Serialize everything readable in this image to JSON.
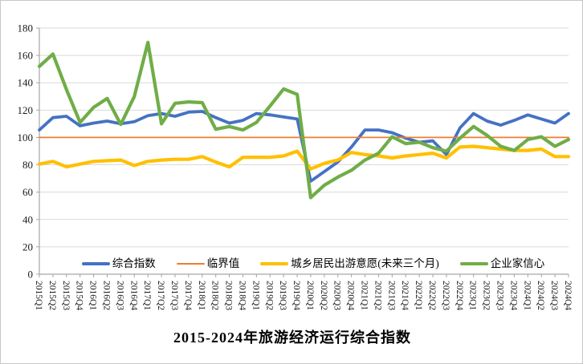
{
  "chart_data": {
    "type": "line",
    "title": "2015-2024年旅游经济运行综合指数",
    "categories": [
      "2015Q1",
      "2015Q2",
      "2015Q3",
      "2015Q4",
      "2016Q1",
      "2016Q2",
      "2016Q3",
      "2016Q4",
      "2017Q1",
      "2017Q2",
      "2017Q3",
      "2017Q4",
      "2018Q1",
      "2018Q2",
      "2018Q3",
      "2018Q4",
      "2019Q1",
      "2019Q2",
      "2019Q3",
      "2019Q4",
      "2020Q1",
      "2020Q2",
      "2020Q3",
      "2020Q4",
      "2021Q1",
      "2021Q2",
      "2021Q3",
      "2021Q4",
      "2022Q1",
      "2022Q2",
      "2022Q3",
      "2022Q4",
      "2023Q1",
      "2023Q2",
      "2023Q3",
      "2023Q4",
      "2024Q1",
      "2024Q2",
      "2024Q3",
      "2024Q4"
    ],
    "series": [
      {
        "name": "综合指数",
        "color": "#4472C4",
        "values": [
          105.5,
          114.5,
          115.5,
          108.5,
          110.5,
          112,
          110,
          111.5,
          116,
          117.5,
          115.5,
          118.5,
          119,
          114.5,
          110.5,
          112.5,
          117.5,
          116.5,
          115,
          113.5,
          68,
          75,
          82,
          93,
          105.5,
          105.5,
          103.5,
          99.5,
          96.5,
          97.5,
          87.5,
          107,
          117.5,
          112,
          109,
          112.5,
          116.5,
          113.5,
          110.5,
          117.5
        ]
      },
      {
        "name": "临界值",
        "color": "#ED7D31",
        "values": [
          100,
          100,
          100,
          100,
          100,
          100,
          100,
          100,
          100,
          100,
          100,
          100,
          100,
          100,
          100,
          100,
          100,
          100,
          100,
          100,
          100,
          100,
          100,
          100,
          100,
          100,
          100,
          100,
          100,
          100,
          100,
          100,
          100,
          100,
          100,
          100,
          100,
          100,
          100,
          100
        ]
      },
      {
        "name": "城乡居民出游意愿(未来三个月)",
        "color": "#FFC000",
        "values": [
          80.5,
          82.5,
          78.5,
          80.5,
          82.5,
          83,
          83.5,
          79.5,
          82.5,
          83.5,
          84,
          84,
          86,
          82,
          78.5,
          85.5,
          85.5,
          85.5,
          86.5,
          90,
          77,
          81,
          83.5,
          89,
          87.5,
          86.5,
          85,
          86.5,
          87.5,
          88.5,
          85,
          93,
          93.5,
          92.5,
          91.5,
          90.5,
          90.5,
          91.5,
          86,
          86
        ]
      },
      {
        "name": "企业家信心",
        "color": "#70AD47",
        "values": [
          152,
          161,
          135,
          111,
          122,
          128.5,
          109.5,
          130,
          169.5,
          110,
          125,
          126,
          125.5,
          106,
          108,
          105.5,
          111,
          123,
          135.5,
          131.5,
          56,
          65,
          71,
          76,
          83.5,
          88.5,
          100.5,
          95.5,
          96.5,
          92.5,
          90,
          99.5,
          108,
          101.5,
          93.5,
          90.5,
          98.5,
          100.5,
          93.5,
          98.5
        ]
      }
    ],
    "ylim": [
      0,
      180
    ],
    "y_ticks": [
      0,
      20,
      40,
      60,
      80,
      100,
      120,
      140,
      160,
      180
    ],
    "grid": true,
    "legend_position": "bottom-inside"
  },
  "colors": {
    "gridline": "#D9D9D9",
    "axis": "#A6A6A6",
    "tick_label": "#1a1a1a",
    "background": "#FFFFFF"
  }
}
